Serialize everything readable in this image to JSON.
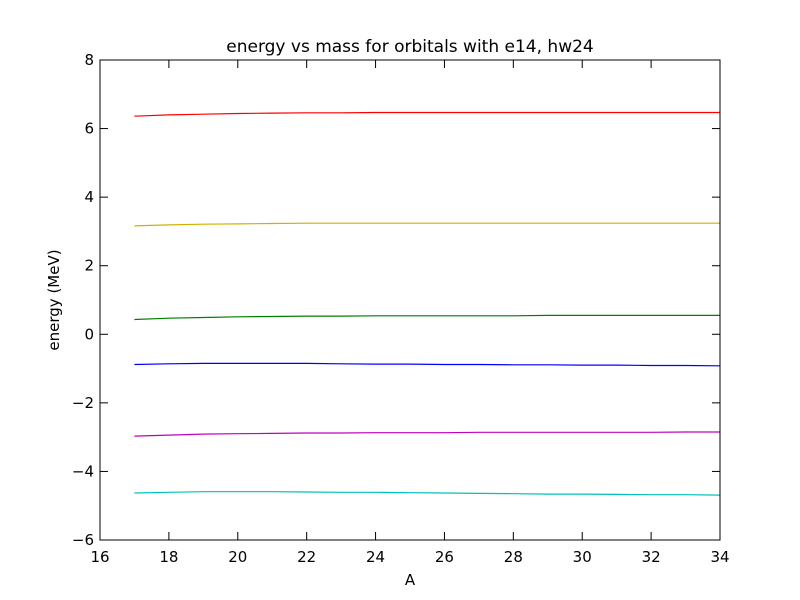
{
  "chart_data": {
    "type": "line",
    "title": "energy vs mass for orbitals with e14, hw24",
    "xlabel": "A",
    "ylabel": "energy (MeV)",
    "xlim": [
      16,
      34
    ],
    "ylim": [
      -6,
      8
    ],
    "xticks": [
      16,
      18,
      20,
      22,
      24,
      26,
      28,
      30,
      32,
      34
    ],
    "yticks": [
      -6,
      -4,
      -2,
      0,
      2,
      4,
      6,
      8
    ],
    "grid": false,
    "legend": "none",
    "x": [
      17,
      18,
      19,
      20,
      21,
      22,
      23,
      24,
      25,
      26,
      27,
      28,
      29,
      30,
      31,
      32,
      33,
      34
    ],
    "series": [
      {
        "color": "#ff0000",
        "values": [
          6.36,
          6.4,
          6.42,
          6.44,
          6.45,
          6.46,
          6.46,
          6.47,
          6.47,
          6.47,
          6.47,
          6.47,
          6.47,
          6.47,
          6.47,
          6.47,
          6.47,
          6.47
        ]
      },
      {
        "color": "#d4b000",
        "values": [
          3.16,
          3.19,
          3.21,
          3.22,
          3.23,
          3.24,
          3.24,
          3.24,
          3.24,
          3.24,
          3.24,
          3.24,
          3.24,
          3.24,
          3.24,
          3.24,
          3.24,
          3.24
        ]
      },
      {
        "color": "#008000",
        "values": [
          0.43,
          0.47,
          0.49,
          0.51,
          0.52,
          0.53,
          0.53,
          0.54,
          0.54,
          0.54,
          0.54,
          0.54,
          0.55,
          0.55,
          0.55,
          0.55,
          0.55,
          0.55
        ]
      },
      {
        "color": "#0000ff",
        "values": [
          -0.88,
          -0.86,
          -0.85,
          -0.85,
          -0.85,
          -0.85,
          -0.86,
          -0.87,
          -0.87,
          -0.88,
          -0.88,
          -0.89,
          -0.89,
          -0.9,
          -0.9,
          -0.91,
          -0.91,
          -0.92
        ]
      },
      {
        "color": "#bf00bf",
        "values": [
          -2.97,
          -2.94,
          -2.91,
          -2.9,
          -2.89,
          -2.88,
          -2.88,
          -2.87,
          -2.87,
          -2.87,
          -2.86,
          -2.86,
          -2.86,
          -2.86,
          -2.86,
          -2.86,
          -2.85,
          -2.85
        ]
      },
      {
        "color": "#00bfbf",
        "values": [
          -4.63,
          -4.61,
          -4.59,
          -4.59,
          -4.59,
          -4.6,
          -4.61,
          -4.61,
          -4.62,
          -4.63,
          -4.64,
          -4.65,
          -4.66,
          -4.66,
          -4.67,
          -4.68,
          -4.68,
          -4.69
        ]
      }
    ]
  }
}
